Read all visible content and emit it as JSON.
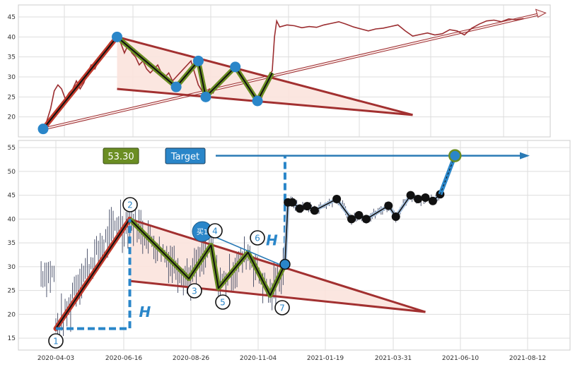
{
  "chart_data": [
    {
      "type": "line",
      "panel": "overview",
      "ylim": [
        15,
        48
      ],
      "yticks": [
        20,
        25,
        30,
        35,
        40,
        45
      ],
      "grid": true,
      "series": [
        {
          "role": "price",
          "color": "#9b2d30",
          "points": [
            [
              0,
              17
            ],
            [
              0.5,
              19
            ],
            [
              1,
              22
            ],
            [
              1.5,
              26.5
            ],
            [
              2,
              28
            ],
            [
              2.5,
              27
            ],
            [
              3,
              24.5
            ],
            [
              3.5,
              26
            ],
            [
              4,
              27
            ],
            [
              4.5,
              29
            ],
            [
              5,
              27
            ],
            [
              5.5,
              28.5
            ],
            [
              6,
              31
            ],
            [
              6.5,
              33
            ],
            [
              7,
              32
            ],
            [
              7.5,
              34
            ],
            [
              8,
              35
            ],
            [
              8.5,
              37
            ],
            [
              9,
              38.5
            ],
            [
              9.5,
              39.5
            ],
            [
              10,
              40
            ],
            [
              10.5,
              38.5
            ],
            [
              11,
              36
            ],
            [
              11.5,
              38
            ],
            [
              12,
              36
            ],
            [
              12.5,
              35
            ],
            [
              13,
              33
            ],
            [
              13.5,
              34
            ],
            [
              14,
              32
            ],
            [
              14.5,
              31
            ],
            [
              15,
              32
            ],
            [
              15.5,
              33
            ],
            [
              16,
              31
            ],
            [
              16.5,
              30
            ],
            [
              17,
              31
            ],
            [
              17.5,
              29
            ],
            [
              18,
              30
            ],
            [
              18.5,
              31
            ],
            [
              19,
              32
            ],
            [
              19.5,
              33
            ],
            [
              20,
              34
            ],
            [
              20.5,
              31
            ],
            [
              21,
              28
            ],
            [
              21.5,
              26.5
            ],
            [
              22,
              25.5
            ],
            [
              22.5,
              27
            ],
            [
              23,
              26
            ],
            [
              23.5,
              28
            ],
            [
              24,
              29
            ],
            [
              24.5,
              30
            ],
            [
              25,
              31
            ],
            [
              25.5,
              32
            ],
            [
              26,
              32.5
            ],
            [
              26.5,
              31
            ],
            [
              27,
              29.5
            ],
            [
              27.5,
              28
            ],
            [
              28,
              27
            ],
            [
              28.5,
              26
            ],
            [
              29,
              25
            ],
            [
              29.5,
              24.5
            ],
            [
              30,
              27
            ],
            [
              30.5,
              30
            ],
            [
              30.8,
              31
            ],
            [
              31,
              31.5
            ],
            [
              31.3,
              40
            ],
            [
              31.6,
              44
            ],
            [
              32,
              42.5
            ],
            [
              33,
              43
            ],
            [
              34,
              42.8
            ],
            [
              35,
              42.3
            ],
            [
              36,
              42.6
            ],
            [
              37,
              42.4
            ],
            [
              38,
              43
            ],
            [
              39,
              43.4
            ],
            [
              40,
              43.8
            ],
            [
              41,
              43.2
            ],
            [
              42,
              42.5
            ],
            [
              43,
              42
            ],
            [
              44,
              41.5
            ],
            [
              45,
              42
            ],
            [
              46,
              42.2
            ],
            [
              47,
              42.6
            ],
            [
              48,
              43
            ],
            [
              49,
              41.5
            ],
            [
              50,
              40.2
            ],
            [
              51,
              40.6
            ],
            [
              52,
              41
            ],
            [
              53,
              40.5
            ],
            [
              54,
              40.8
            ],
            [
              55,
              41.8
            ],
            [
              56,
              41.5
            ],
            [
              57,
              40.5
            ],
            [
              58,
              42.2
            ],
            [
              59,
              43.2
            ],
            [
              60,
              44
            ],
            [
              61,
              44.2
            ],
            [
              62,
              43.8
            ],
            [
              63,
              44.5
            ],
            [
              64,
              44.3
            ],
            [
              65,
              44.6
            ]
          ]
        },
        {
          "role": "upper-trendline",
          "color": "#a23030",
          "points": [
            [
              10,
              40
            ],
            [
              50,
              20.5
            ]
          ]
        },
        {
          "role": "lower-trendline",
          "color": "#a23030",
          "points": [
            [
              10,
              27
            ],
            [
              50,
              20.5
            ]
          ]
        },
        {
          "role": "impulse-leg",
          "color": "#c0392b",
          "points": [
            [
              0,
              17
            ],
            [
              10,
              40
            ]
          ]
        },
        {
          "role": "wave-legs",
          "color": "#6b8e23",
          "points": [
            [
              10,
              40
            ],
            [
              18,
              27.5
            ],
            [
              21,
              34
            ],
            [
              22,
              25
            ],
            [
              26,
              32.5
            ],
            [
              29,
              24
            ],
            [
              31,
              31
            ]
          ]
        },
        {
          "role": "breakout-arrow",
          "color": "#f4c4bc",
          "points": [
            [
              0,
              17
            ],
            [
              68,
              46
            ]
          ]
        }
      ],
      "markers": [
        [
          0,
          17
        ],
        [
          10,
          40
        ],
        [
          18,
          27.5
        ],
        [
          21,
          34
        ],
        [
          22,
          25
        ],
        [
          26,
          32.5
        ],
        [
          29,
          24
        ]
      ]
    },
    {
      "type": "line",
      "panel": "pattern-detail",
      "ylim": [
        12.5,
        56.5
      ],
      "yticks": [
        15,
        20,
        25,
        30,
        35,
        40,
        45,
        50,
        55
      ],
      "xticks": [
        "2020-04-03",
        "2020-06-16",
        "2020-08-26",
        "2020-11-04",
        "2021-01-19",
        "2021-03-31",
        "2021-06-10",
        "2021-08-12"
      ],
      "grid": true,
      "price_label": "53.30",
      "target_label": "Target",
      "height_label": "H",
      "buy_label": "买1",
      "wave_labels": [
        "1",
        "2",
        "3",
        "4",
        "5",
        "6",
        "7"
      ],
      "pivots": [
        [
          0,
          17
        ],
        [
          10,
          40
        ],
        [
          18,
          27.5
        ],
        [
          21,
          34.5
        ],
        [
          22,
          25.5
        ],
        [
          26,
          33
        ],
        [
          29,
          24
        ],
        [
          31,
          30.5
        ]
      ],
      "upper_trendline": [
        [
          10,
          40
        ],
        [
          50,
          20.5
        ]
      ],
      "lower_trendline": [
        [
          10,
          27
        ],
        [
          50,
          20.5
        ]
      ],
      "breakout_point": [
        31,
        30.5
      ],
      "post_breakout": [
        [
          31,
          30.5
        ],
        [
          31.4,
          43.5
        ],
        [
          32,
          43.5
        ],
        [
          33,
          42.2
        ],
        [
          34,
          42.7
        ],
        [
          35,
          41.8
        ],
        [
          38,
          44.2
        ],
        [
          40,
          40
        ],
        [
          41,
          40.8
        ],
        [
          42,
          40
        ],
        [
          45,
          42.8
        ],
        [
          46,
          40.5
        ],
        [
          48,
          45
        ],
        [
          49,
          44.2
        ],
        [
          50,
          44.5
        ],
        [
          51,
          43.8
        ],
        [
          52,
          45.2
        ]
      ],
      "target_point": [
        54,
        53.3
      ]
    }
  ]
}
